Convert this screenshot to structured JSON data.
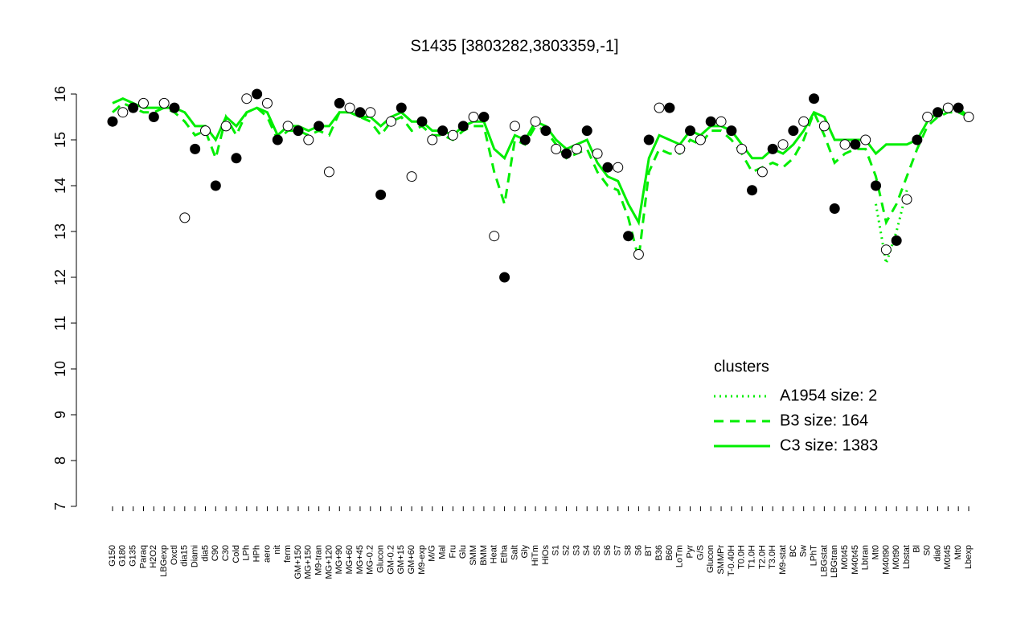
{
  "chart_data": {
    "type": "line-scatter",
    "title": "S1435 [3803282,3803359,-1]",
    "categories": [
      "G150",
      "G180",
      "G135",
      "Paraq",
      "H2O2",
      "LBGexp",
      "Oxctl",
      "dia15",
      "Diami",
      "dia5",
      "C90",
      "C30",
      "Cold",
      "LPh",
      "HPh",
      "aero",
      "nit",
      "ferm",
      "GM+150",
      "MG+150",
      "M9-tran",
      "MG+120",
      "MG+90",
      "MG+60",
      "MG+45",
      "MG-0.2",
      "Glucon",
      "GM-0.2",
      "GM+15",
      "GM+60",
      "M9-exp",
      "M/G",
      "Mal",
      "Fru",
      "Glu",
      "SMM",
      "BMM",
      "Heat",
      "Etha",
      "Salt",
      "Gly",
      "HiTm",
      "HiOs",
      "S1",
      "S2",
      "S3",
      "S4",
      "S5",
      "S6",
      "S7",
      "S8",
      "S6",
      "BT",
      "B36",
      "B60",
      "LoTm",
      "Pyr",
      "G/S",
      "Glucon",
      "SMMPr",
      "T-0.40H",
      "T0.0H",
      "T1.0H",
      "T2.0H",
      "T3.0H",
      "M9-stat",
      "BC",
      "Sw",
      "LPhT",
      "LBGstat",
      "LBGtran",
      "M0t45",
      "M40t45",
      "Lbtran",
      "Mt0",
      "M40t90",
      "M0t90",
      "Lbstat",
      "Bl",
      "S0",
      "dia0",
      "M0t45",
      "Mt0",
      "Lbexp"
    ],
    "points": {
      "values": [
        15.4,
        15.6,
        15.7,
        15.8,
        15.5,
        15.8,
        15.7,
        13.3,
        14.8,
        15.2,
        14.0,
        15.3,
        14.6,
        15.9,
        16.0,
        15.8,
        15.0,
        15.3,
        15.2,
        15.0,
        15.3,
        14.3,
        15.8,
        15.7,
        15.6,
        15.6,
        13.8,
        15.4,
        15.7,
        14.2,
        15.4,
        15.0,
        15.2,
        15.1,
        15.3,
        15.5,
        15.5,
        12.9,
        12.0,
        15.3,
        15.0,
        15.4,
        15.2,
        14.8,
        14.7,
        14.8,
        15.2,
        14.7,
        14.4,
        14.4,
        12.9,
        12.5,
        15.0,
        15.7,
        15.7,
        14.8,
        15.2,
        15.0,
        15.4,
        15.4,
        15.2,
        14.8,
        13.9,
        14.3,
        14.8,
        14.9,
        15.2,
        15.4,
        15.9,
        15.3,
        13.5,
        14.9,
        14.9,
        15.0,
        14.0,
        12.6,
        12.8,
        13.7,
        15.0,
        15.5,
        15.6,
        15.7,
        15.7,
        15.5
      ],
      "fills": [
        "#000000",
        "#ffffff"
      ]
    },
    "series": [
      {
        "name": "A1954 size: 2",
        "color": "#00ee00",
        "dash": "2,5",
        "values": [
          null,
          null,
          null,
          null,
          null,
          null,
          null,
          null,
          null,
          null,
          null,
          null,
          null,
          null,
          null,
          null,
          null,
          null,
          null,
          null,
          null,
          null,
          null,
          null,
          null,
          null,
          null,
          null,
          null,
          null,
          null,
          null,
          null,
          null,
          null,
          null,
          null,
          null,
          null,
          null,
          null,
          null,
          null,
          null,
          null,
          null,
          null,
          null,
          null,
          null,
          null,
          null,
          null,
          null,
          null,
          null,
          null,
          null,
          null,
          null,
          null,
          null,
          null,
          null,
          null,
          null,
          null,
          null,
          null,
          null,
          null,
          null,
          null,
          null,
          13.6,
          12.3,
          13.0,
          13.9,
          null,
          null,
          null,
          null,
          null,
          null
        ]
      },
      {
        "name": "B3 size: 164",
        "color": "#00ee00",
        "dash": "12,8",
        "values": [
          15.6,
          15.8,
          15.7,
          15.6,
          15.6,
          15.7,
          15.6,
          15.4,
          15.1,
          15.2,
          14.6,
          15.5,
          15.1,
          15.6,
          15.7,
          15.5,
          15.0,
          15.2,
          15.2,
          15.1,
          15.2,
          15.1,
          15.6,
          15.6,
          15.5,
          15.4,
          15.1,
          15.4,
          15.5,
          15.2,
          15.3,
          15.1,
          15.1,
          15.0,
          15.2,
          15.3,
          15.3,
          14.3,
          13.6,
          15.0,
          14.9,
          15.3,
          15.2,
          14.9,
          14.6,
          14.7,
          14.8,
          14.3,
          14.0,
          13.9,
          13.3,
          12.4,
          14.3,
          14.8,
          14.7,
          14.7,
          15.0,
          14.9,
          15.2,
          15.2,
          15.0,
          14.7,
          14.3,
          14.4,
          14.5,
          14.4,
          14.6,
          15.0,
          15.6,
          15.1,
          14.5,
          14.7,
          14.8,
          14.8,
          14.2,
          13.2,
          13.6,
          14.2,
          14.8,
          15.3,
          15.5,
          15.6,
          15.6,
          15.5
        ]
      },
      {
        "name": "C3 size: 1383",
        "color": "#00ee00",
        "dash": "",
        "values": [
          15.8,
          15.9,
          15.8,
          15.7,
          15.7,
          15.7,
          15.7,
          15.6,
          15.3,
          15.3,
          15.0,
          15.5,
          15.3,
          15.6,
          15.7,
          15.6,
          15.1,
          15.3,
          15.3,
          15.2,
          15.3,
          15.3,
          15.6,
          15.6,
          15.5,
          15.5,
          15.3,
          15.5,
          15.6,
          15.4,
          15.4,
          15.2,
          15.2,
          15.1,
          15.3,
          15.4,
          15.4,
          14.8,
          14.6,
          15.1,
          15.0,
          15.4,
          15.3,
          15.0,
          14.8,
          14.9,
          15.0,
          14.5,
          14.2,
          14.1,
          13.6,
          13.2,
          14.6,
          15.1,
          15.0,
          14.9,
          15.2,
          15.1,
          15.3,
          15.3,
          15.2,
          14.9,
          14.6,
          14.6,
          14.8,
          14.7,
          14.9,
          15.2,
          15.6,
          15.5,
          15.0,
          15.0,
          15.0,
          15.0,
          14.7,
          14.9,
          14.9,
          14.9,
          15.0,
          15.4,
          15.6,
          15.7,
          15.7,
          15.5
        ]
      }
    ],
    "ylim": [
      7,
      16
    ],
    "yticks": [
      7,
      8,
      9,
      10,
      11,
      12,
      13,
      14,
      15,
      16
    ],
    "legend_title": "clusters",
    "legend_color": "#00ee00"
  }
}
